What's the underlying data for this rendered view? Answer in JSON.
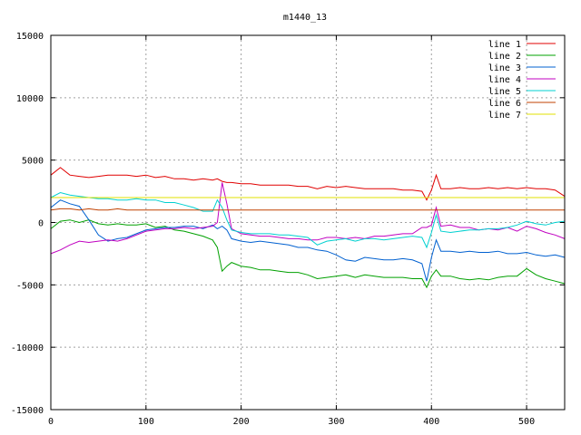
{
  "chart_data": {
    "type": "line",
    "title": "m1440_13",
    "xlabel": "",
    "ylabel": "",
    "xlim": [
      0,
      540
    ],
    "ylim": [
      -15000,
      15000
    ],
    "xticks": [
      0,
      100,
      200,
      300,
      400,
      500
    ],
    "yticks": [
      -15000,
      -10000,
      -5000,
      0,
      5000,
      10000,
      15000
    ],
    "grid": true,
    "legend_position": "top-right",
    "x": [
      0,
      10,
      20,
      30,
      40,
      50,
      60,
      70,
      80,
      90,
      100,
      110,
      120,
      130,
      140,
      150,
      160,
      170,
      175,
      180,
      185,
      190,
      200,
      210,
      220,
      230,
      240,
      250,
      260,
      270,
      280,
      290,
      300,
      310,
      320,
      330,
      340,
      350,
      360,
      370,
      380,
      390,
      395,
      400,
      405,
      410,
      420,
      430,
      440,
      450,
      460,
      470,
      480,
      490,
      500,
      510,
      520,
      530,
      540
    ],
    "series": [
      {
        "name": "line 1",
        "color": "#e00000",
        "values": [
          3800,
          4400,
          3800,
          3700,
          3600,
          3700,
          3800,
          3800,
          3800,
          3700,
          3800,
          3600,
          3700,
          3500,
          3500,
          3400,
          3500,
          3400,
          3500,
          3300,
          3200,
          3200,
          3100,
          3100,
          3000,
          3000,
          3000,
          3000,
          2900,
          2900,
          2700,
          2900,
          2800,
          2900,
          2800,
          2700,
          2700,
          2700,
          2700,
          2600,
          2600,
          2500,
          1800,
          2600,
          3800,
          2700,
          2700,
          2800,
          2700,
          2700,
          2800,
          2700,
          2800,
          2700,
          2800,
          2700,
          2700,
          2600,
          2100
        ]
      },
      {
        "name": "line 2",
        "color": "#00a000",
        "values": [
          -500,
          100,
          200,
          0,
          200,
          -100,
          -200,
          -100,
          -200,
          -200,
          -100,
          -400,
          -300,
          -600,
          -700,
          -900,
          -1100,
          -1400,
          -2000,
          -3900,
          -3500,
          -3200,
          -3500,
          -3600,
          -3800,
          -3800,
          -3900,
          -4000,
          -4000,
          -4200,
          -4500,
          -4400,
          -4300,
          -4200,
          -4400,
          -4200,
          -4300,
          -4400,
          -4400,
          -4400,
          -4500,
          -4500,
          -5200,
          -4300,
          -3800,
          -4300,
          -4300,
          -4500,
          -4600,
          -4500,
          -4600,
          -4400,
          -4300,
          -4300,
          -3700,
          -4200,
          -4500,
          -4700,
          -4900
        ]
      },
      {
        "name": "line 3",
        "color": "#0060d0",
        "values": [
          1200,
          1800,
          1500,
          1300,
          200,
          -1000,
          -1500,
          -1300,
          -1200,
          -900,
          -600,
          -500,
          -400,
          -400,
          -300,
          -300,
          -500,
          -200,
          -500,
          -300,
          -600,
          -1300,
          -1500,
          -1600,
          -1500,
          -1600,
          -1700,
          -1800,
          -2000,
          -2000,
          -2200,
          -2300,
          -2600,
          -3000,
          -3100,
          -2800,
          -2900,
          -3000,
          -3000,
          -2900,
          -3000,
          -3300,
          -4700,
          -2800,
          -1400,
          -2300,
          -2300,
          -2400,
          -2300,
          -2400,
          -2400,
          -2300,
          -2500,
          -2500,
          -2400,
          -2600,
          -2700,
          -2600,
          -2800
        ]
      },
      {
        "name": "line 4",
        "color": "#c000c0",
        "values": [
          -2500,
          -2200,
          -1800,
          -1500,
          -1600,
          -1500,
          -1400,
          -1500,
          -1300,
          -1000,
          -700,
          -600,
          -500,
          -500,
          -400,
          -500,
          -400,
          -300,
          0,
          3200,
          1500,
          -500,
          -900,
          -1000,
          -1100,
          -1100,
          -1200,
          -1300,
          -1300,
          -1400,
          -1400,
          -1200,
          -1200,
          -1300,
          -1200,
          -1300,
          -1100,
          -1100,
          -1000,
          -900,
          -900,
          -400,
          -400,
          -200,
          1200,
          -300,
          -200,
          -400,
          -400,
          -600,
          -500,
          -600,
          -400,
          -700,
          -300,
          -500,
          -800,
          -1000,
          -1300
        ]
      },
      {
        "name": "line 5",
        "color": "#00d0d0",
        "values": [
          2000,
          2400,
          2200,
          2100,
          2000,
          1900,
          1900,
          1800,
          1800,
          1900,
          1800,
          1800,
          1600,
          1600,
          1400,
          1200,
          900,
          900,
          1800,
          1200,
          200,
          -600,
          -800,
          -900,
          -900,
          -900,
          -1000,
          -1000,
          -1100,
          -1200,
          -1800,
          -1500,
          -1400,
          -1300,
          -1500,
          -1300,
          -1300,
          -1400,
          -1300,
          -1200,
          -1100,
          -1200,
          -2000,
          -800,
          600,
          -700,
          -800,
          -700,
          -600,
          -600,
          -500,
          -500,
          -400,
          -200,
          100,
          -100,
          -200,
          0,
          100
        ]
      },
      {
        "name": "line 6",
        "color": "#c04000",
        "values": [
          1000,
          1100,
          1100,
          1000,
          1100,
          1000,
          1000,
          1100,
          1000,
          1000,
          1000,
          1000,
          1000,
          1000,
          1000,
          1000,
          1000,
          1000,
          1000,
          1000,
          1000,
          1000,
          1000,
          1000,
          1000,
          1000,
          1000,
          1000,
          1000,
          1000,
          1000,
          1000,
          1000,
          1000,
          1000,
          1000,
          1000,
          1000,
          1000,
          1000,
          1000,
          1000,
          1000,
          1000,
          1000,
          1000,
          1000,
          1000,
          1000,
          1000,
          1000,
          1000,
          1000,
          1000,
          1000,
          1000,
          1000,
          1000,
          1000
        ]
      },
      {
        "name": "line 7",
        "color": "#e0e000",
        "values": [
          2000,
          2000,
          2000,
          2000,
          2000,
          2000,
          2000,
          2000,
          2000,
          2000,
          2000,
          2000,
          2000,
          2000,
          2000,
          2000,
          2000,
          2000,
          2000,
          2000,
          2000,
          2000,
          2000,
          2000,
          2000,
          2000,
          2000,
          2000,
          2000,
          2000,
          2000,
          2000,
          2000,
          2000,
          2000,
          2000,
          2000,
          2000,
          2000,
          2000,
          2000,
          2000,
          2000,
          2000,
          2000,
          2000,
          2000,
          2000,
          2000,
          2000,
          2000,
          2000,
          2000,
          2000,
          2000,
          2000,
          2000,
          2000,
          2000
        ]
      }
    ]
  }
}
